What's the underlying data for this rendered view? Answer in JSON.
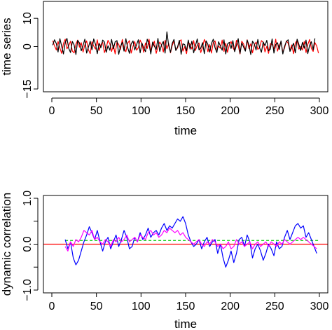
{
  "chart_data": [
    {
      "type": "line",
      "xlabel": "time",
      "ylabel": "time series",
      "xlim": [
        0,
        300
      ],
      "ylim": [
        -15,
        15
      ],
      "x_ticks": [
        0,
        50,
        100,
        150,
        200,
        250,
        300
      ],
      "x_tick_labels": [
        "0",
        "50",
        "100",
        "150",
        "200",
        "250",
        "300"
      ],
      "y_ticks": [
        -15,
        0,
        10
      ],
      "y_tick_labels": [
        "−15",
        "0",
        "10"
      ],
      "grid": false,
      "legend": "none",
      "series": [
        {
          "color": "#ff0000",
          "x_start": 1,
          "x_step": 2,
          "values": [
            2.1,
            0.3,
            -1.2,
            1.8,
            -0.5,
            -2.4,
            1.1,
            2.6,
            -0.8,
            0.4,
            1.9,
            -1.6,
            -2.2,
            0.9,
            2.3,
            -0.2,
            1.4,
            -1.9,
            0.6,
            2.0,
            -1.1,
            -2.5,
            1.7,
            0.2,
            -0.9,
            2.4,
            -1.4,
            0.7,
            1.5,
            -2.1,
            -0.3,
            2.2,
            1.0,
            -1.7,
            0.5,
            -2.6,
            1.6,
            0.8,
            -1.0,
            2.5,
            -0.6,
            -1.8,
            1.2,
            2.1,
            -2.3,
            0.1,
            1.8,
            -1.3,
            -0.4,
            2.3,
            0.9,
            -2.0,
            1.3,
            -0.7,
            2.6,
            -1.5,
            0.3,
            1.9,
            -2.4,
            -0.1,
            1.6,
            0.6,
            -1.9,
            2.2,
            -0.8,
            1.1,
            -2.2,
            0.4,
            2.0,
            -1.2,
            -0.5,
            1.7,
            2.4,
            -1.6,
            0.0,
            -2.5,
            1.5,
            0.8,
            -0.9,
            2.1,
            -1.4,
            0.5,
            1.3,
            -2.1,
            -0.2,
            2.5,
            1.0,
            -1.8,
            0.7,
            -2.3,
            1.4,
            2.0,
            -1.1,
            0.2,
            -0.6,
            2.3,
            -1.7,
            1.2,
            -2.0,
            0.6,
            1.8,
            -0.4,
            -1.5,
            2.2,
            0.3,
            -2.6,
            1.9,
            0.9,
            -1.3,
            2.4,
            -0.7,
            1.0,
            -2.2,
            0.5,
            1.6,
            -1.0,
            -0.3,
            2.1,
            1.5,
            -1.9,
            0.1,
            -2.4,
            1.1,
            0.8,
            -0.8,
            2.6,
            -1.6,
            0.4,
            1.7,
            -2.0,
            -0.5,
            2.0,
            1.2,
            -1.4,
            0.6,
            -2.5,
            1.3,
            2.2,
            -0.9,
            0.0,
            -1.2,
            1.8,
            -2.1,
            0.7,
            2.5,
            -0.6,
            -1.7,
            1.4,
            0.2,
            -2.3
          ]
        },
        {
          "color": "#000000",
          "x_start": 1,
          "x_step": 2,
          "values": [
            0.5,
            2.4,
            1.1,
            -1.9,
            2.8,
            0.2,
            -2.6,
            1.4,
            2.9,
            -0.7,
            -2.1,
            1.8,
            0.6,
            -2.8,
            2.2,
            1.3,
            -1.5,
            0.4,
            2.6,
            -2.3,
            -0.2,
            1.9,
            -1.1,
            2.7,
            0.8,
            -2.5,
            1.2,
            -0.4,
            2.3,
            1.6,
            -2.0,
            0.3,
            -1.3,
            2.5,
            -0.8,
            1.7,
            2.1,
            -2.7,
            0.0,
            1.5,
            -1.6,
            2.8,
            -0.3,
            -2.4,
            1.0,
            2.0,
            -1.2,
            0.7,
            2.4,
            -2.2,
            1.3,
            -0.5,
            -1.8,
            2.6,
            0.9,
            -2.6,
            1.6,
            0.1,
            -1.0,
            2.9,
            -1.7,
            0.6,
            1.8,
            -2.3,
            5.2,
            0.4,
            -2.0,
            1.2,
            2.5,
            -1.4,
            -0.1,
            2.2,
            -2.7,
            1.0,
            0.7,
            -1.5,
            2.3,
            -0.9,
            1.9,
            -2.2,
            0.3,
            2.7,
            -1.1,
            -0.6,
            1.4,
            -2.5,
            2.0,
            0.8,
            -1.9,
            1.1,
            2.6,
            -0.4,
            -2.1,
            1.7,
            0.2,
            -1.3,
            2.4,
            -2.6,
            0.9,
            1.5,
            -0.7,
            2.1,
            -1.8,
            0.5,
            2.8,
            -2.4,
            1.3,
            -0.2,
            -1.6,
            2.3,
            0.6,
            -2.8,
            1.9,
            1.0,
            -1.2,
            2.5,
            -0.5,
            -2.0,
            1.6,
            0.3,
            2.2,
            -1.5,
            -0.9,
            2.7,
            -2.3,
            0.7,
            1.4,
            -1.0,
            2.0,
            -2.6,
            0.1,
            1.8,
            2.4,
            -1.7,
            -0.3,
            1.2,
            -2.2,
            2.6,
            0.8,
            -1.4,
            1.5,
            -0.6,
            2.3,
            -2.5,
            0.4,
            1.7,
            -1.1,
            2.9
          ]
        }
      ]
    },
    {
      "type": "line",
      "xlabel": "time",
      "ylabel": "dynamic correlation",
      "xlim": [
        0,
        300
      ],
      "ylim": [
        -1.0,
        1.0
      ],
      "x_ticks": [
        0,
        50,
        100,
        150,
        200,
        250,
        300
      ],
      "x_tick_labels": [
        "0",
        "50",
        "100",
        "150",
        "200",
        "250",
        "300"
      ],
      "y_ticks": [
        -1.0,
        -0.5,
        0.0,
        0.5,
        1.0
      ],
      "y_tick_labels": [
        "−1.0",
        "",
        "0.0",
        "",
        "1.0"
      ],
      "grid": false,
      "legend": "none",
      "hlines": [
        {
          "y": 0.0,
          "color": "#ff0000",
          "style": "solid"
        },
        {
          "y": 0.08,
          "x_from": 15,
          "x_to": 300,
          "color": "#00cc00",
          "style": "dashed"
        }
      ],
      "series": [
        {
          "color": "#0000ff",
          "x": [
            15,
            18,
            21,
            24,
            27,
            30,
            33,
            36,
            39,
            42,
            45,
            48,
            51,
            54,
            57,
            60,
            63,
            66,
            69,
            72,
            75,
            78,
            81,
            84,
            87,
            90,
            93,
            96,
            99,
            102,
            105,
            108,
            111,
            114,
            117,
            120,
            123,
            126,
            129,
            132,
            135,
            138,
            141,
            144,
            147,
            150,
            153,
            156,
            159,
            162,
            165,
            168,
            171,
            174,
            177,
            180,
            183,
            186,
            189,
            192,
            195,
            198,
            201,
            204,
            207,
            210,
            213,
            216,
            219,
            222,
            225,
            228,
            231,
            234,
            237,
            240,
            243,
            246,
            249,
            252,
            255,
            258,
            261,
            264,
            267,
            270,
            273,
            276,
            279,
            282,
            285,
            288,
            291,
            294,
            297
          ],
          "values": [
            0.1,
            -0.1,
            0.05,
            -0.3,
            -0.45,
            -0.35,
            -0.15,
            0.05,
            0.2,
            0.38,
            0.25,
            0.1,
            0.3,
            0.05,
            -0.15,
            0.05,
            0.15,
            -0.1,
            0.05,
            0.2,
            -0.05,
            0.1,
            0.3,
            0.15,
            -0.1,
            -0.05,
            0.15,
            0.05,
            0.25,
            0.1,
            0.2,
            0.35,
            0.15,
            0.25,
            0.3,
            0.2,
            0.35,
            0.45,
            0.3,
            0.4,
            0.35,
            0.45,
            0.55,
            0.5,
            0.6,
            0.45,
            0.2,
            0.05,
            -0.05,
            0.0,
            0.1,
            -0.1,
            0.05,
            0.15,
            -0.05,
            0.05,
            0.1,
            -0.2,
            0.0,
            -0.3,
            -0.5,
            -0.35,
            -0.15,
            -0.4,
            -0.2,
            0.1,
            0.15,
            -0.05,
            0.2,
            0.05,
            -0.3,
            -0.1,
            0.0,
            -0.15,
            -0.35,
            -0.2,
            0.0,
            -0.1,
            -0.25,
            0.05,
            -0.1,
            -0.05,
            0.15,
            0.3,
            0.1,
            0.25,
            0.4,
            0.45,
            0.35,
            0.4,
            0.15,
            0.25,
            0.1,
            -0.05,
            -0.2
          ]
        },
        {
          "color": "#ff00ff",
          "x": [
            15,
            18,
            21,
            24,
            27,
            30,
            33,
            36,
            39,
            42,
            45,
            48,
            51,
            54,
            57,
            60,
            63,
            66,
            69,
            72,
            75,
            78,
            81,
            84,
            87,
            90,
            93,
            96,
            99,
            102,
            105,
            108,
            111,
            114,
            117,
            120,
            123,
            126,
            129,
            132,
            135,
            138,
            141,
            144,
            147,
            150,
            153,
            156,
            159,
            162,
            165,
            168,
            171,
            174,
            177,
            180,
            183,
            186,
            189,
            192,
            195,
            198,
            201,
            204,
            207,
            210,
            213,
            216,
            219,
            222,
            225,
            228,
            231,
            234,
            237,
            240,
            243,
            246,
            249,
            252,
            255,
            258,
            261,
            264,
            267,
            270,
            273,
            276,
            279,
            282,
            285,
            288,
            291,
            294,
            297
          ],
          "values": [
            -0.05,
            -0.15,
            0.05,
            -0.05,
            0.1,
            0.05,
            0.15,
            0.3,
            0.25,
            0.2,
            0.3,
            0.1,
            0.15,
            0.05,
            0.0,
            0.1,
            0.05,
            -0.05,
            0.1,
            0.05,
            0.15,
            0.05,
            0.1,
            0.2,
            0.05,
            0.1,
            0.15,
            0.05,
            0.2,
            0.15,
            0.1,
            0.25,
            0.3,
            0.2,
            0.25,
            0.15,
            0.2,
            0.3,
            0.25,
            0.35,
            0.3,
            0.25,
            0.3,
            0.2,
            0.25,
            0.15,
            0.1,
            0.05,
            0.0,
            0.05,
            0.1,
            0.0,
            -0.05,
            0.05,
            0.0,
            0.1,
            0.05,
            -0.05,
            0.0,
            -0.1,
            -0.05,
            0.05,
            -0.1,
            -0.05,
            0.1,
            0.0,
            0.05,
            -0.05,
            0.0,
            0.05,
            -0.1,
            0.0,
            0.05,
            -0.05,
            0.0,
            0.05,
            -0.05,
            0.05,
            0.0,
            -0.05,
            0.05,
            0.0,
            0.1,
            0.05,
            0.0,
            0.05,
            0.1,
            0.15,
            0.1,
            0.15,
            0.1,
            0.05,
            0.0,
            -0.05,
            -0.1
          ]
        }
      ]
    }
  ]
}
